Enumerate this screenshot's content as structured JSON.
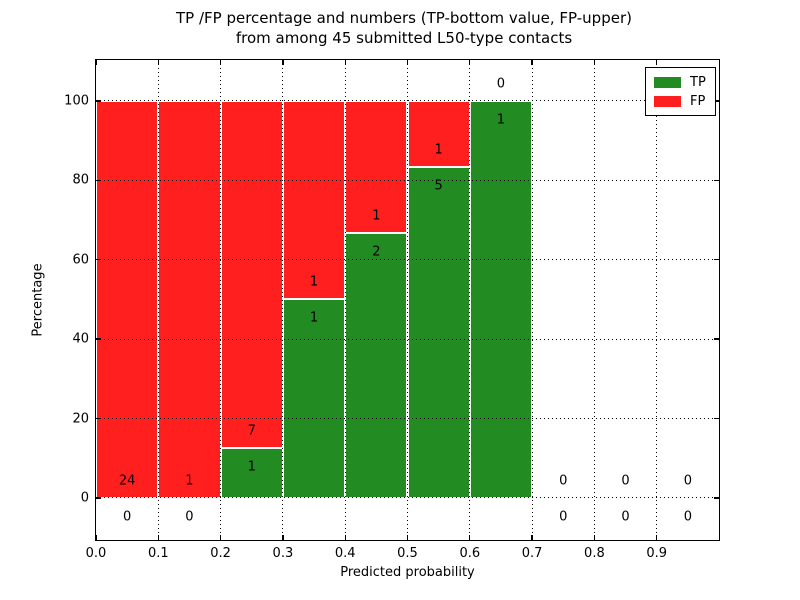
{
  "chart_data": {
    "type": "bar",
    "stacked": true,
    "normalization": "percent_within_bin",
    "title_line1": "TP /FP percentage and numbers (TP-bottom value, FP-upper)",
    "title_line2": "from among 45 submitted L50-type contacts",
    "xlabel": "Predicted probability",
    "ylabel": "Percentage",
    "total_contacts": 45,
    "bin_width": 0.1,
    "bin_starts": [
      0.0,
      0.1,
      0.2,
      0.3,
      0.4,
      0.5,
      0.6,
      0.7,
      0.8,
      0.9
    ],
    "series": [
      {
        "name": "TP",
        "color": "#228b22",
        "counts": [
          0,
          0,
          1,
          1,
          2,
          5,
          1,
          0,
          0,
          0
        ]
      },
      {
        "name": "FP",
        "color": "#ff1f1f",
        "counts": [
          24,
          1,
          7,
          1,
          1,
          1,
          0,
          0,
          0,
          0
        ]
      }
    ],
    "tp_percent_by_bin": [
      0,
      0,
      12.5,
      50,
      66.7,
      83.3,
      100,
      null,
      null,
      null
    ],
    "xtick_labels": [
      "0.0",
      "0.1",
      "0.2",
      "0.3",
      "0.4",
      "0.5",
      "0.6",
      "0.7",
      "0.8",
      "0.9"
    ],
    "ytick_values": [
      0,
      20,
      40,
      60,
      80,
      100
    ],
    "ytick_labels": [
      "0",
      "20",
      "40",
      "60",
      "80",
      "100"
    ],
    "xlim": [
      0.0,
      1.0
    ],
    "ylim_display": [
      -10.6,
      110.3
    ],
    "grid": "dotted",
    "axis_color": "#000000",
    "legend": {
      "position": "upper-right",
      "items": [
        {
          "label": "TP",
          "color": "#228b22"
        },
        {
          "label": "FP",
          "color": "#ff1f1f"
        }
      ]
    }
  }
}
